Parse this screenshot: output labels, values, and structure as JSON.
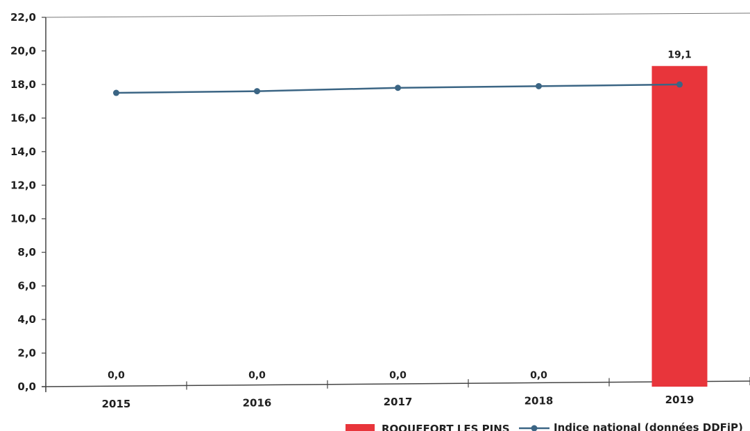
{
  "chart_data": {
    "type": "bar",
    "categories": [
      "2015",
      "2016",
      "2017",
      "2018",
      "2019"
    ],
    "series": [
      {
        "name": "ROQUEFORT LES PINS",
        "kind": "bar",
        "color": "#e8353b",
        "values": [
          0.0,
          0.0,
          0.0,
          0.0,
          19.1
        ],
        "data_labels": [
          "0,0",
          "0,0",
          "0,0",
          "0,0",
          "19,1"
        ]
      },
      {
        "name": "Indice national (données DDFiP)",
        "kind": "line",
        "color": "#3b6584",
        "values": [
          17.5,
          17.6,
          17.8,
          17.9,
          18.0
        ]
      }
    ],
    "ylim": [
      0,
      22
    ],
    "y_ticks": [
      "0,0",
      "2,0",
      "4,0",
      "6,0",
      "8,0",
      "10,0",
      "12,0",
      "14,0",
      "16,0",
      "18,0",
      "20,0",
      "22,0"
    ],
    "legend_placement": "bottom-right",
    "grid": false
  }
}
